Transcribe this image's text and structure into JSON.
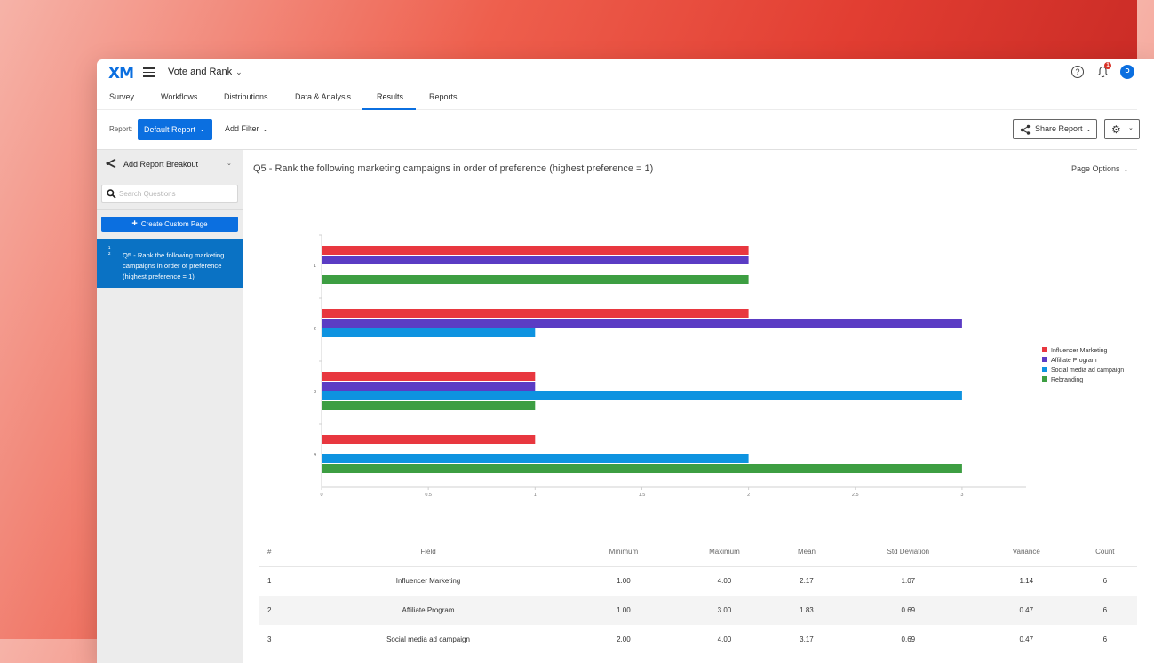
{
  "header": {
    "logo": "XM",
    "project_title": "Vote and Rank",
    "notification_count": "1",
    "avatar_initial": "D"
  },
  "nav": {
    "tabs": [
      "Survey",
      "Workflows",
      "Distributions",
      "Data & Analysis",
      "Results",
      "Reports"
    ],
    "active_tab": "Results"
  },
  "toolbar": {
    "report_label": "Report:",
    "report_value": "Default Report",
    "add_filter": "Add Filter",
    "share_report": "Share Report"
  },
  "sidebar": {
    "breakout_label": "Add Report Breakout",
    "search_placeholder": "Search Questions",
    "create_custom_page": "Create Custom Page",
    "question_item": "Q5 - Rank the following marketing campaigns in order of preference (highest preference = 1)"
  },
  "main": {
    "page_title": "Q5 - Rank the following marketing campaigns in order of preference (highest preference = 1)",
    "page_options": "Page Options"
  },
  "colors": {
    "accent": "#0b6fe0",
    "influencer": "#e8373f",
    "affiliate": "#5b3cc4",
    "social": "#0e93e0",
    "rebranding": "#3d9e42"
  },
  "chart_data": {
    "type": "bar",
    "orientation": "horizontal",
    "categories": [
      "1",
      "2",
      "3",
      "4"
    ],
    "series": [
      {
        "name": "Influencer Marketing",
        "values": [
          2,
          2,
          1,
          1
        ],
        "color": "#e8373f"
      },
      {
        "name": "Affiliate Program",
        "values": [
          2,
          3,
          1,
          0
        ],
        "color": "#5b3cc4"
      },
      {
        "name": "Social media ad campaign",
        "values": [
          0,
          1,
          3,
          2
        ],
        "color": "#0e93e0"
      },
      {
        "name": "Rebranding",
        "values": [
          2,
          0,
          1,
          3
        ],
        "color": "#3d9e42"
      }
    ],
    "x_ticks": [
      "0",
      "0.5",
      "1",
      "1.5",
      "2",
      "2.5",
      "3"
    ],
    "xlim": [
      0,
      3.3
    ],
    "grid": false,
    "legend_position": "right"
  },
  "table": {
    "headers": [
      "#",
      "Field",
      "Minimum",
      "Maximum",
      "Mean",
      "Std Deviation",
      "Variance",
      "Count"
    ],
    "rows": [
      [
        "1",
        "Influencer Marketing",
        "1.00",
        "4.00",
        "2.17",
        "1.07",
        "1.14",
        "6"
      ],
      [
        "2",
        "Affiliate Program",
        "1.00",
        "3.00",
        "1.83",
        "0.69",
        "0.47",
        "6"
      ],
      [
        "3",
        "Social media ad campaign",
        "2.00",
        "4.00",
        "3.17",
        "0.69",
        "0.47",
        "6"
      ]
    ]
  }
}
